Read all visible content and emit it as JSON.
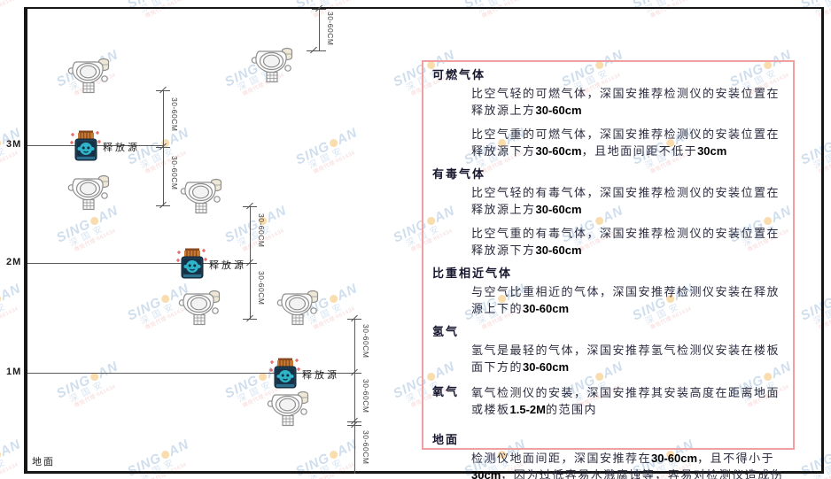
{
  "watermark": {
    "brand_left": "SING",
    "brand_right": "AN",
    "brand_sub": "深国安",
    "agent_line": "微信代理:661434"
  },
  "diagram": {
    "height_labels": [
      "3M",
      "2M",
      "1M"
    ],
    "ground_label": "地面",
    "source_label": "释放源",
    "dim_label": "30-60CM"
  },
  "panel": {
    "sections": [
      {
        "heading": "可燃气体",
        "paragraphs": [
          "比空气轻的可燃气体，深国安推荐检测仪的安装位置在释放源上方30-60cm",
          "比空气重的可燃气体，深国安推荐检测仪的安装位置在释放源下方30-60cm，且地面间距不低于30cm"
        ]
      },
      {
        "heading": "有毒气体",
        "paragraphs": [
          "比空气轻的有毒气体，深国安推荐检测仪的安装位置在释放源上方30-60cm",
          "比空气重的有毒气体，深国安推荐检测仪的安装位置在释放源下方30-60cm"
        ]
      },
      {
        "heading": "比重相近气体",
        "paragraphs": [
          "与空气比重相近的气体，深国安推荐检测仪安装在释放源上下的30-60cm"
        ]
      },
      {
        "heading": "氢气",
        "paragraphs": [
          "氢气是最轻的气体，深国安推荐氢气检测仪安装在楼板面下方的30-60cm"
        ]
      },
      {
        "heading": "氧气",
        "paragraphs": [
          "氧气检测仪的安装，深国安推荐其安装高度在距离地面或楼板1.5-2M的范围内"
        ]
      },
      {
        "heading": "地面",
        "paragraphs": [
          "检测仪地面间距，深国安推荐在30-60cm，且不得小于30cm，因为过低容易水溅腐蚀等，容易对检测仪造成伤害"
        ]
      }
    ]
  },
  "colors": {
    "panel_border": "#f0a0a0",
    "frame": "#161616",
    "dim_line": "#5a5a5a",
    "watermark_blue": "#a9c4e0",
    "watermark_red": "#efb6b6",
    "source_body": "#1d3d54",
    "source_cap": "#c87a32",
    "source_face": "#2fb3c9",
    "sparkle_red": "#e04848"
  }
}
